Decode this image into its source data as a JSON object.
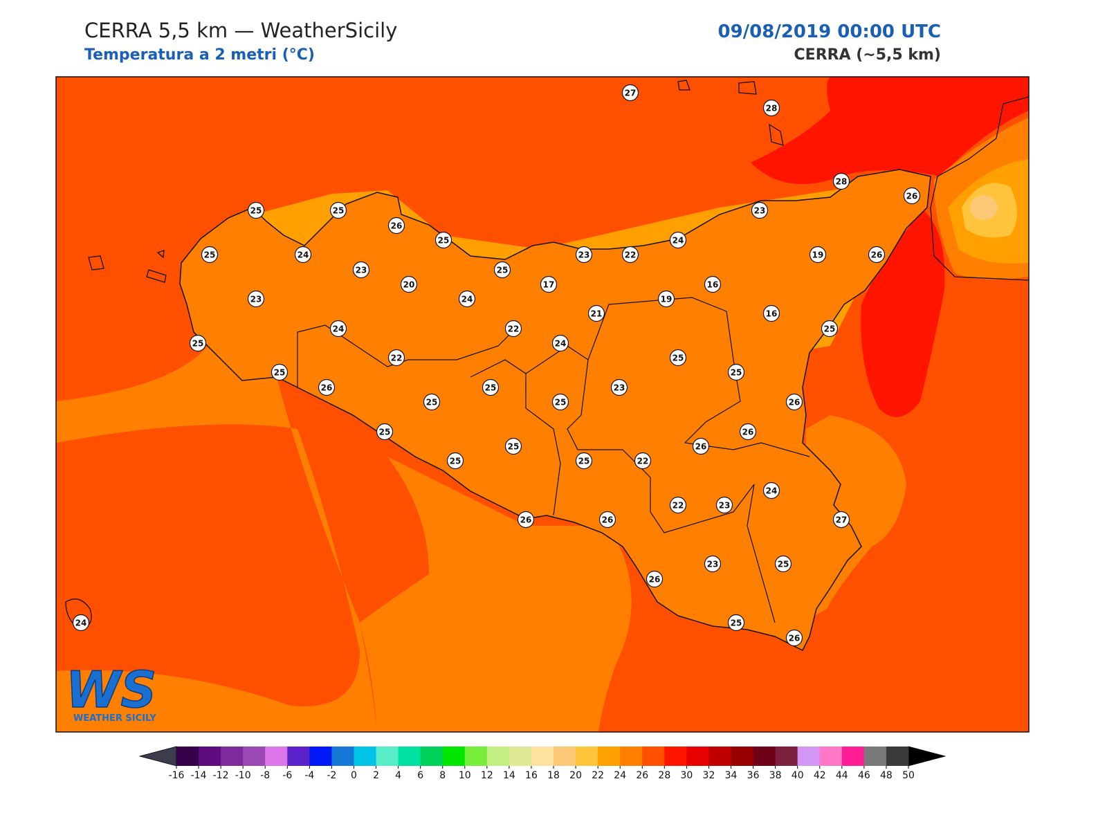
{
  "header": {
    "title": "CERRA 5,5 km — WeatherSicily",
    "subtitle": "Temperatura a 2 metri (°C)",
    "datetime": "09/08/2019 00:00 UTC",
    "model": "CERRA (~5,5 km)"
  },
  "stations": [
    27,
    28,
    28,
    26,
    25,
    25,
    26,
    25,
    25,
    24,
    25,
    23,
    22,
    24,
    23,
    19,
    26,
    23,
    20,
    17,
    16,
    19,
    23,
    24,
    21,
    16,
    25,
    24,
    22,
    25,
    24,
    25,
    22,
    25,
    25,
    26,
    25,
    23,
    26,
    25,
    25,
    25,
    26,
    25,
    26,
    25,
    25,
    22,
    24,
    22,
    23,
    26,
    26,
    27,
    23,
    25,
    26,
    25,
    26,
    24
  ],
  "colorbar": {
    "ticks": [
      -16,
      -14,
      -12,
      -10,
      -8,
      -6,
      -4,
      -2,
      0,
      2,
      4,
      6,
      8,
      10,
      12,
      14,
      16,
      18,
      20,
      22,
      24,
      26,
      28,
      30,
      32,
      34,
      36,
      38,
      40,
      42,
      44,
      46,
      48,
      50
    ],
    "colors": [
      "#36004a",
      "#5e0b80",
      "#7e2a9a",
      "#9b48b5",
      "#dc75e8",
      "#5a22c8",
      "#0018f5",
      "#1478d6",
      "#00c3e6",
      "#58edc8",
      "#00e0a0",
      "#00d15a",
      "#00e600",
      "#78ee3c",
      "#c3ee82",
      "#e0e896",
      "#ffe1a0",
      "#fcc878",
      "#ffc43c",
      "#ff9f00",
      "#ff7f00",
      "#ff5000",
      "#ff1400",
      "#e60000",
      "#c00000",
      "#960000",
      "#6e0018",
      "#7e2040",
      "#d296f5",
      "#ff78c8",
      "#ff1e96",
      "#7a7a7a",
      "#3a3a3a"
    ],
    "under": "#3c3c4c",
    "over": "#000000"
  },
  "logo": {
    "mark": "WS",
    "text": "WEATHER SICILY"
  }
}
